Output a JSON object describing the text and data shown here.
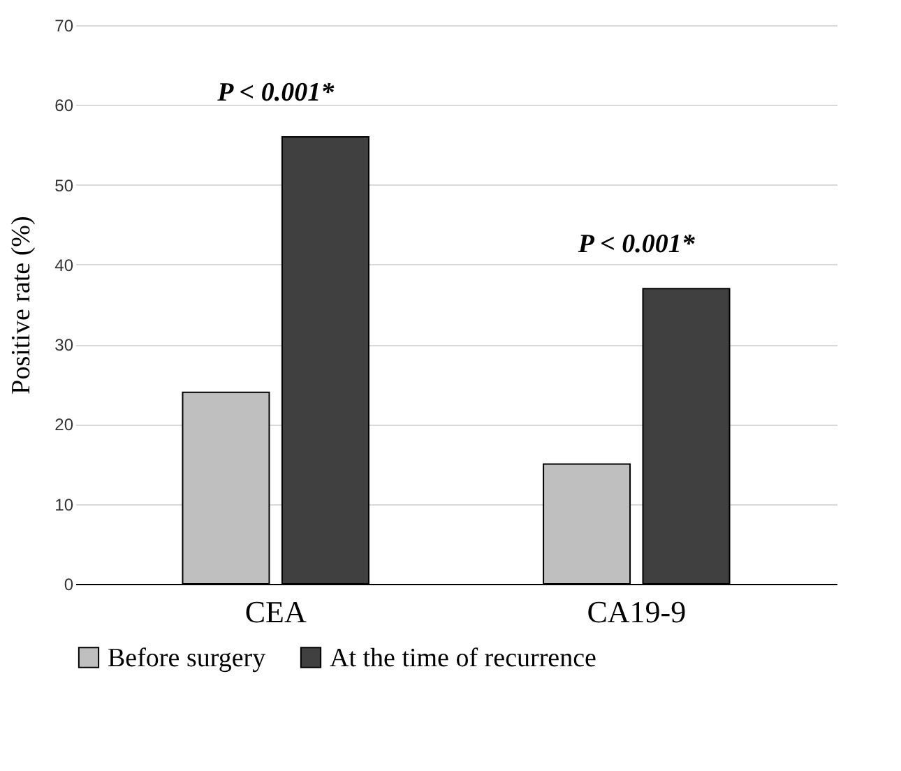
{
  "chart_data": {
    "type": "bar",
    "ylabel": "Positive rate (%)",
    "categories": [
      "CEA",
      "CA19-9"
    ],
    "series": [
      {
        "name": "Before surgery",
        "color": "#bfbfbf",
        "values": [
          24,
          15
        ]
      },
      {
        "name": "At the time of recurrence",
        "color": "#404040",
        "values": [
          56,
          37
        ]
      }
    ],
    "ylim": [
      0,
      70
    ],
    "yticks": [
      0,
      10,
      20,
      30,
      40,
      50,
      60,
      70
    ],
    "grid": "y",
    "legend": "bottom",
    "annotations": [
      "P < 0.001*",
      "P < 0.001*"
    ]
  }
}
